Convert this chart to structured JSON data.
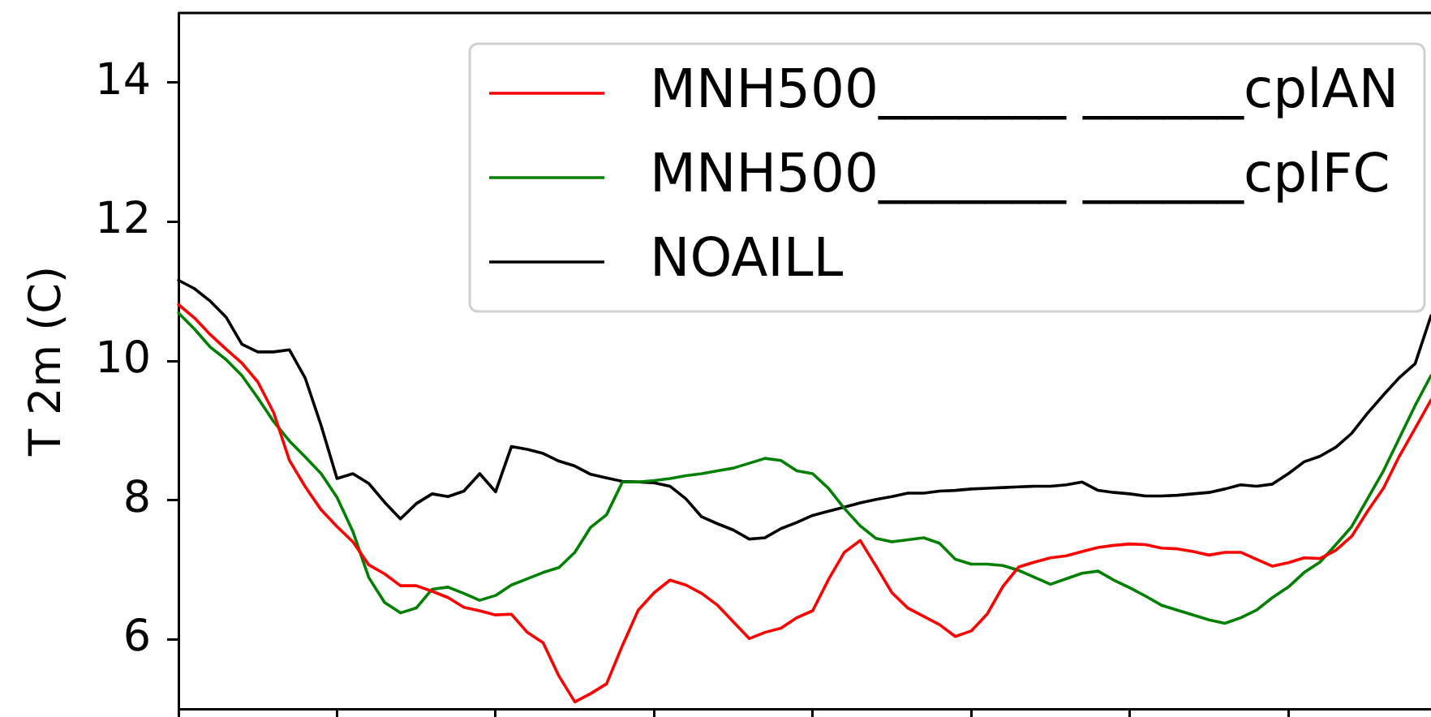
{
  "chart_data": {
    "type": "line",
    "ylabel": "T 2m (C)",
    "categories": [
      null,
      null,
      null,
      null,
      null,
      null,
      null,
      null,
      null,
      null,
      null,
      null,
      null,
      null,
      null,
      null,
      null,
      null,
      null,
      null,
      null,
      null,
      null,
      null,
      null,
      null,
      null,
      null,
      null,
      null,
      null,
      null,
      null,
      null,
      null,
      null,
      null,
      null,
      null,
      null,
      null,
      null,
      null,
      null,
      null,
      null,
      null,
      null,
      null,
      null,
      null,
      null,
      null,
      null,
      null,
      null,
      null,
      null,
      null,
      null,
      null,
      null,
      null,
      null,
      null,
      null,
      null,
      null,
      null,
      null,
      null,
      null,
      null,
      null,
      null,
      null,
      null,
      null,
      null,
      null
    ],
    "series": [
      {
        "name": "MNH500_______ ______cplAN",
        "color": "#ff0000",
        "values": [
          10.81,
          10.62,
          10.38,
          10.17,
          9.97,
          9.7,
          9.26,
          8.57,
          8.19,
          7.86,
          7.62,
          7.4,
          7.07,
          6.94,
          6.77,
          6.77,
          6.69,
          6.6,
          6.46,
          6.41,
          6.35,
          6.36,
          6.1,
          5.95,
          5.47,
          5.1,
          5.22,
          5.36,
          5.91,
          6.42,
          6.67,
          6.85,
          6.78,
          6.66,
          6.49,
          6.25,
          6.01,
          6.1,
          6.16,
          6.31,
          6.41,
          6.86,
          7.25,
          7.42,
          7.05,
          6.67,
          6.45,
          6.33,
          6.21,
          6.04,
          6.12,
          6.36,
          6.76,
          7.04,
          7.11,
          7.17,
          7.2,
          7.26,
          7.32,
          7.35,
          7.37,
          7.36,
          7.31,
          7.3,
          7.26,
          7.21,
          7.25,
          7.25,
          7.15,
          7.05,
          7.1,
          7.17,
          7.16,
          7.28,
          7.48,
          7.84,
          8.17,
          8.63,
          9.03,
          9.44
        ]
      },
      {
        "name": "MNH500_______ ______cplFC",
        "color": "#008000",
        "values": [
          10.69,
          10.46,
          10.2,
          10.02,
          9.79,
          9.47,
          9.13,
          8.85,
          8.62,
          8.38,
          8.04,
          7.55,
          6.89,
          6.53,
          6.38,
          6.45,
          6.72,
          6.75,
          6.66,
          6.56,
          6.63,
          6.78,
          6.87,
          6.96,
          7.03,
          7.25,
          7.61,
          7.79,
          8.26,
          8.26,
          8.28,
          8.31,
          8.35,
          8.38,
          8.42,
          8.46,
          8.53,
          8.6,
          8.57,
          8.42,
          8.38,
          8.17,
          7.88,
          7.63,
          7.45,
          7.4,
          7.43,
          7.46,
          7.38,
          7.15,
          7.08,
          7.08,
          7.06,
          6.99,
          6.89,
          6.79,
          6.87,
          6.95,
          6.98,
          6.85,
          6.74,
          6.62,
          6.49,
          6.42,
          6.35,
          6.28,
          6.23,
          6.31,
          6.42,
          6.6,
          6.75,
          6.96,
          7.11,
          7.36,
          7.62,
          8.02,
          8.42,
          8.89,
          9.36,
          9.79
        ]
      },
      {
        "name": "NOAILL",
        "color": "#000000",
        "values": [
          11.16,
          11.04,
          10.86,
          10.63,
          10.24,
          10.13,
          10.13,
          10.16,
          9.75,
          9.07,
          8.31,
          8.38,
          8.24,
          7.97,
          7.73,
          7.95,
          8.09,
          8.05,
          8.13,
          8.38,
          8.12,
          8.77,
          8.73,
          8.67,
          8.56,
          8.49,
          8.37,
          8.32,
          8.27,
          8.26,
          8.25,
          8.2,
          8.02,
          7.76,
          7.66,
          7.57,
          7.44,
          7.46,
          7.59,
          7.68,
          7.78,
          7.84,
          7.9,
          7.96,
          8.01,
          8.05,
          8.1,
          8.1,
          8.13,
          8.14,
          8.16,
          8.17,
          8.18,
          8.19,
          8.2,
          8.2,
          8.22,
          8.26,
          8.14,
          8.11,
          8.09,
          8.06,
          8.06,
          8.07,
          8.09,
          8.11,
          8.16,
          8.22,
          8.2,
          8.23,
          8.38,
          8.55,
          8.63,
          8.76,
          8.96,
          9.25,
          9.51,
          9.76,
          9.96,
          10.65
        ]
      }
    ],
    "ylim": [
      5,
      15
    ],
    "yticks": [
      6,
      8,
      10,
      12,
      14
    ],
    "legend": "top right"
  }
}
